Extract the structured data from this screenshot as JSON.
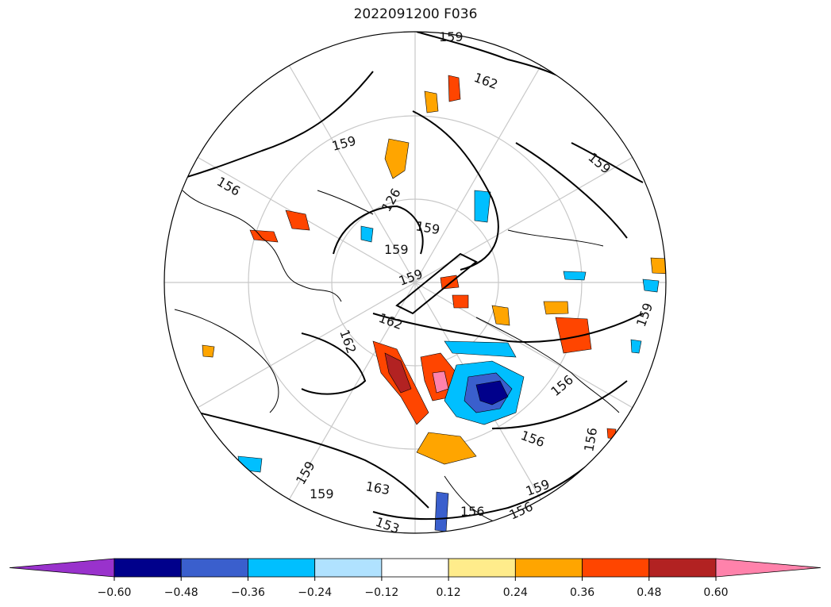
{
  "title": "2022091200 F036",
  "contour_labels": [
    "159",
    "162",
    "159",
    "156",
    "159",
    "126",
    "159",
    "159",
    "159",
    "162",
    "162",
    "159",
    "156",
    "156",
    "156",
    "159",
    "163",
    "159",
    "153",
    "156",
    "156",
    "159"
  ],
  "colorbar": {
    "colors": [
      "#9932cc",
      "#00008b",
      "#3a5fcd",
      "#00bfff",
      "#b0e2ff",
      "#ffffff",
      "#ffec8b",
      "#ffa500",
      "#ff4500",
      "#b22222",
      "#ff82ab"
    ],
    "ticks": [
      "−0.60",
      "−0.48",
      "−0.36",
      "−0.24",
      "−0.12",
      "0.12",
      "0.24",
      "0.36",
      "0.48",
      "0.60"
    ],
    "extend": "both"
  }
}
